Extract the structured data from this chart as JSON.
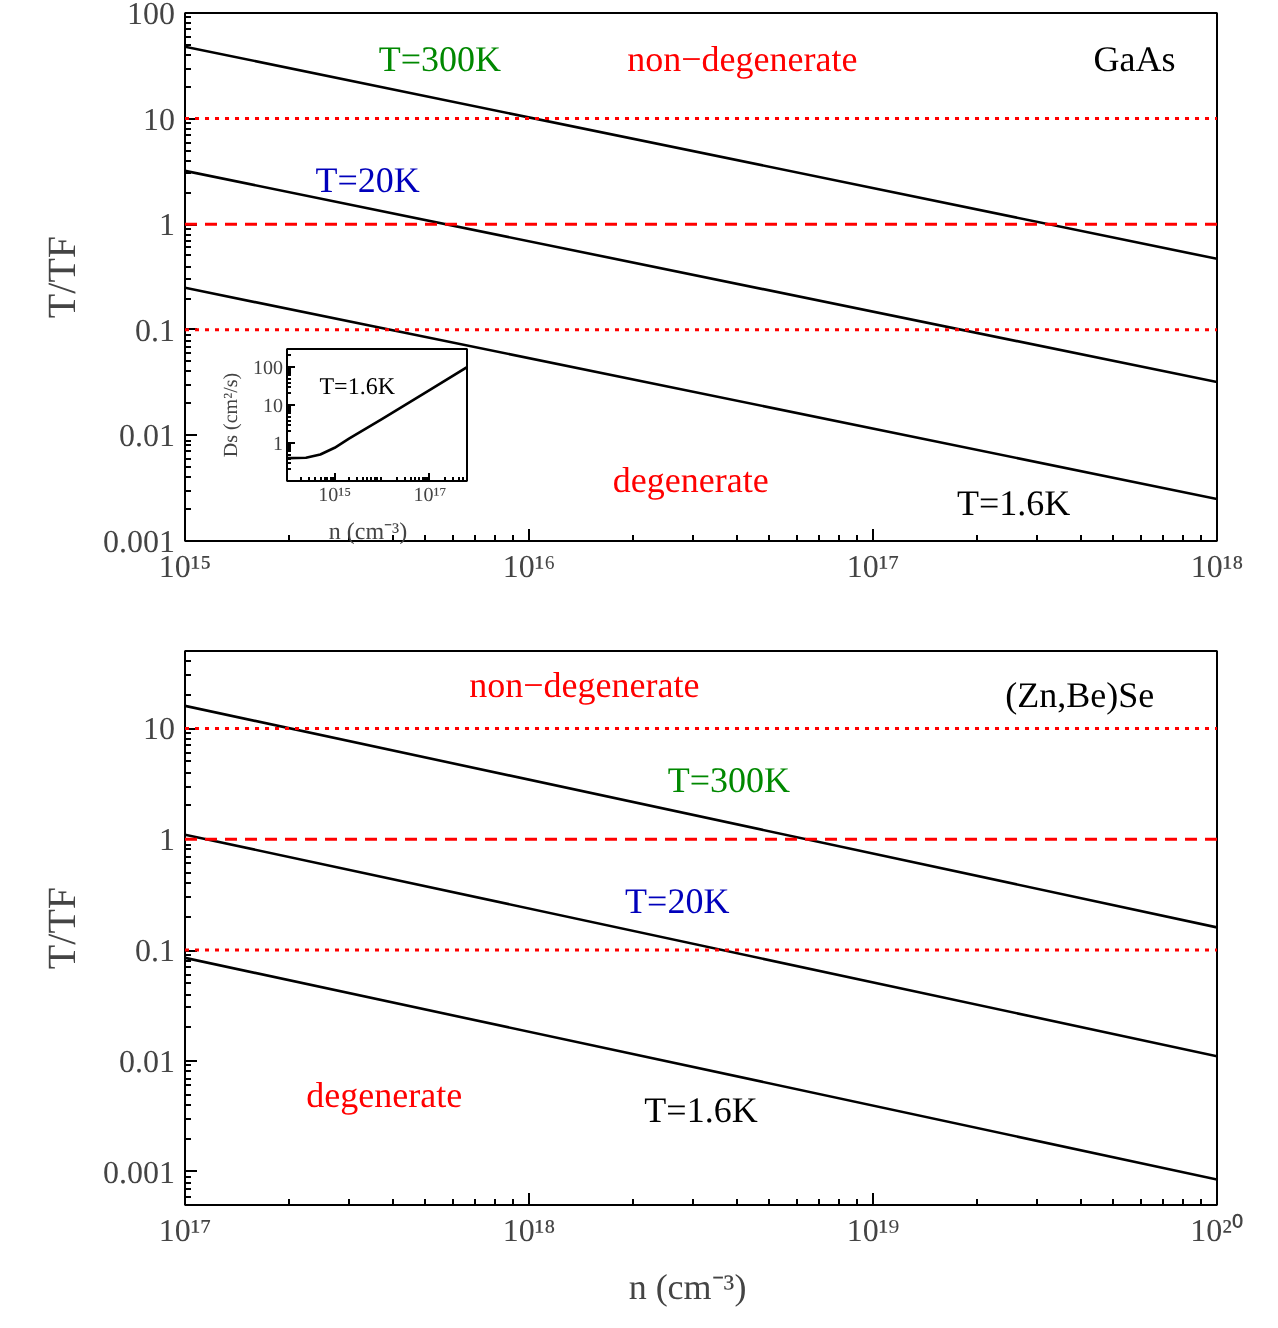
{
  "chart_data": [
    {
      "type": "line",
      "ylabel": "T/TF",
      "log": "xy",
      "marker": "none",
      "line_style": "solid",
      "xlim": [
        1000000000000000.0,
        1e+18
      ],
      "ylim": [
        0.001,
        100
      ],
      "xticks": [
        {
          "value": 1000000000000000.0,
          "label": "10¹⁵"
        },
        {
          "value": 1e+16,
          "label": "10¹⁶"
        },
        {
          "value": 1e+17,
          "label": "10¹⁷"
        },
        {
          "value": 1e+18,
          "label": "10¹⁸"
        }
      ],
      "yticks": [
        0.001,
        0.01,
        0.1,
        1,
        10,
        100
      ],
      "x": [
        1000000000000000.0,
        1e+18
      ],
      "series": [
        {
          "name": "T=300K",
          "color": "#000000",
          "values": [
            48,
            0.47
          ]
        },
        {
          "name": "T=20K",
          "color": "#000000",
          "values": [
            3.2,
            0.032
          ]
        },
        {
          "name": "T=1.6K",
          "color": "#000000",
          "values": [
            0.25,
            0.0025
          ]
        }
      ],
      "ref_lines": [
        {
          "axis": "y",
          "value": 10,
          "color": "#ff0000",
          "line_style": "dotted"
        },
        {
          "axis": "y",
          "value": 1,
          "color": "#ff0000",
          "line_style": "dashed"
        },
        {
          "axis": "y",
          "value": 0.1,
          "color": "#ff0000",
          "line_style": "dotted"
        }
      ],
      "annotations": [
        "non−degenerate",
        "GaAs",
        "degenerate"
      ]
    },
    {
      "type": "line",
      "xlabel": "n    (cm⁻³)",
      "ylabel": "Ds (cm²/s)",
      "log": "xy",
      "marker": "none",
      "line_style": "solid",
      "xlim": [
        100000000000000.0,
        6e+17
      ],
      "ylim": [
        0.1,
        300
      ],
      "xticks": [
        {
          "value": 1000000000000000.0,
          "label": "10¹⁵"
        },
        {
          "value": 1e+17,
          "label": "10¹⁷"
        }
      ],
      "yticks": [
        1,
        10,
        100
      ],
      "x": [
        100000000000000.0,
        250000000000000.0,
        500000000000000.0,
        1000000000000000.0,
        2000000000000000.0,
        1e+16,
        1e+17,
        6e+17
      ],
      "series": [
        {
          "color": "#000000",
          "values": [
            0.4,
            0.41,
            0.5,
            0.75,
            1.3,
            4.3,
            25,
            100
          ]
        }
      ],
      "annotations": [
        "T=1.6K"
      ]
    },
    {
      "type": "line",
      "xlabel": "n    (cm⁻³)",
      "ylabel": "T/TF",
      "log": "xy",
      "marker": "none",
      "line_style": "solid",
      "xlim": [
        1e+17,
        1e+20
      ],
      "ylim": [
        0.0005,
        50
      ],
      "xticks": [
        {
          "value": 1e+17,
          "label": "10¹⁷"
        },
        {
          "value": 1e+18,
          "label": "10¹⁸"
        },
        {
          "value": 1e+19,
          "label": "10¹⁹"
        },
        {
          "value": 1e+20,
          "label": "10²⁰"
        }
      ],
      "yticks": [
        0.001,
        0.01,
        0.1,
        1,
        10
      ],
      "x": [
        1e+17,
        1e+20
      ],
      "series": [
        {
          "name": "T=300K",
          "color": "#000000",
          "values": [
            16,
            0.16
          ]
        },
        {
          "name": "T=20K",
          "color": "#000000",
          "values": [
            1.1,
            0.011
          ]
        },
        {
          "name": "T=1.6K",
          "color": "#000000",
          "values": [
            0.085,
            0.00085
          ]
        }
      ],
      "ref_lines": [
        {
          "axis": "y",
          "value": 10,
          "color": "#ff0000",
          "line_style": "dotted"
        },
        {
          "axis": "y",
          "value": 1,
          "color": "#ff0000",
          "line_style": "dashed"
        },
        {
          "axis": "y",
          "value": 0.1,
          "color": "#ff0000",
          "line_style": "dotted"
        }
      ],
      "annotations": [
        "non−degenerate",
        "(Zn,Be)Se",
        "degenerate"
      ]
    }
  ]
}
